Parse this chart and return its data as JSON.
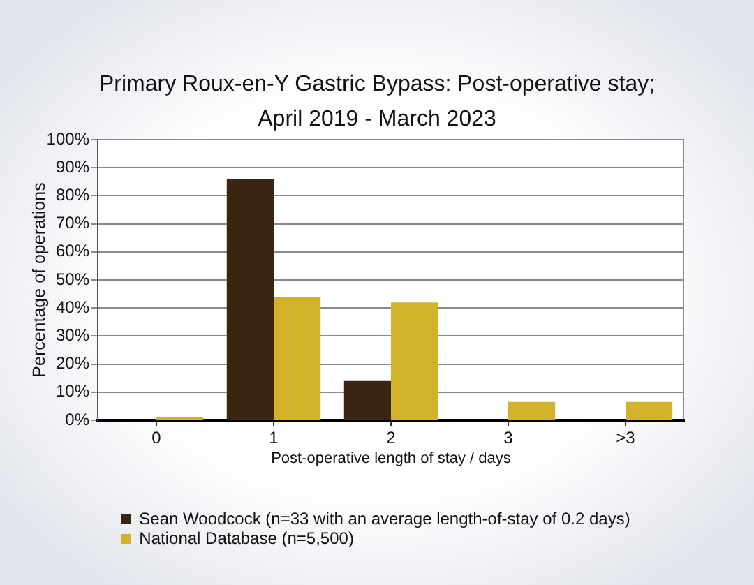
{
  "chart_data": {
    "type": "bar",
    "title": "Primary Roux-en-Y Gastric Bypass: Post-operative stay; April 2019 - March 2023",
    "xlabel": "Post-operative length of stay / days",
    "ylabel": "Percentage of operations",
    "categories": [
      "0",
      "1",
      "2",
      "3",
      ">3"
    ],
    "series": [
      {
        "name": "Sean Woodcock (n=33 with an average length-of-stay of 0.2 days)",
        "color": "#3a2412",
        "values": [
          0,
          86,
          14,
          0,
          0
        ]
      },
      {
        "name": "National Database (n=5,500)",
        "color": "#d2b22a",
        "values": [
          1,
          44,
          42,
          6.5,
          6.5
        ]
      }
    ],
    "ylim": [
      0,
      100
    ],
    "yticks": [
      {
        "value": 0,
        "label": "0%"
      },
      {
        "value": 10,
        "label": "10%"
      },
      {
        "value": 20,
        "label": "20%"
      },
      {
        "value": 30,
        "label": "30%"
      },
      {
        "value": 40,
        "label": "40%"
      },
      {
        "value": 50,
        "label": "50%"
      },
      {
        "value": 60,
        "label": "60%"
      },
      {
        "value": 70,
        "label": "70%"
      },
      {
        "value": 80,
        "label": "80%"
      },
      {
        "value": 90,
        "label": "90%"
      },
      {
        "value": 100,
        "label": "100%"
      }
    ],
    "grid": "y",
    "legend": "bottom"
  }
}
